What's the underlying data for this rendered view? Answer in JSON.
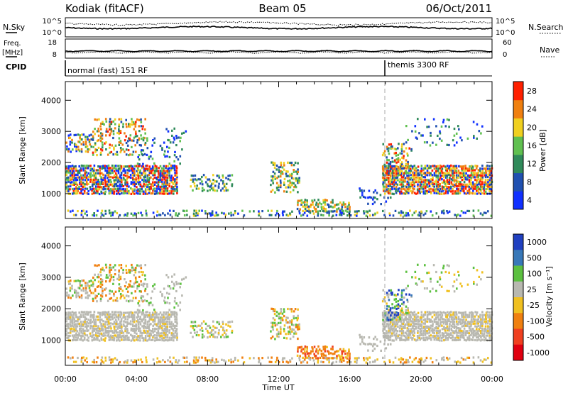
{
  "header": {
    "station": "Kodiak (fitACF)",
    "beam": "Beam 05",
    "date": "06/Oct/2011"
  },
  "top_panels": {
    "nsky_label": "N.Sky",
    "nsearch_label": "N.Search",
    "nsky_ticks": [
      "10^5",
      "10^0"
    ],
    "nsearch_ticks": [
      "10^5",
      "10^0"
    ],
    "freq_label_1": "Freq.",
    "freq_label_2": "[MHz]",
    "freq_ticks": [
      "18",
      "8"
    ],
    "nave_label": "Nave",
    "nave_ticks": [
      "60",
      "0"
    ],
    "cpid_label": "CPID",
    "cpid_segments": [
      {
        "label": "normal (fast) 151 RF",
        "start_hour": 0
      },
      {
        "label": "themis 3300 RF",
        "start_hour": 18
      }
    ]
  },
  "chart_data": [
    {
      "type": "heatmap",
      "name": "power",
      "xlabel": "Time UT",
      "ylabel": "Slant Range [km]",
      "xlim": [
        0,
        24
      ],
      "ylim": [
        200,
        4600
      ],
      "x_ticks": [
        "00:00",
        "04:00",
        "08:00",
        "12:00",
        "16:00",
        "20:00",
        "00:00"
      ],
      "y_ticks": [
        1000,
        2000,
        3000,
        4000
      ],
      "colorbar_label": "Power [dB]",
      "colorbar_ticks": [
        4,
        8,
        12,
        16,
        20,
        24,
        28
      ],
      "colors": [
        "#1030ff",
        "#2050b0",
        "#308a5a",
        "#60c050",
        "#f0d020",
        "#f08010",
        "#ff2000"
      ],
      "dashed_marker_hour": 18
    },
    {
      "type": "heatmap",
      "name": "velocity",
      "xlabel": "Time UT",
      "ylabel": "Slant Range [km]",
      "xlim": [
        0,
        24
      ],
      "ylim": [
        200,
        4600
      ],
      "x_ticks": [
        "00:00",
        "04:00",
        "08:00",
        "12:00",
        "16:00",
        "20:00",
        "00:00"
      ],
      "y_ticks": [
        1000,
        2000,
        3000,
        4000
      ],
      "colorbar_label": "Velocity [m s⁻¹]",
      "colorbar_ticks": [
        "1000",
        "500",
        "100",
        "25",
        "-25",
        "-100",
        "-500",
        "-1000"
      ],
      "colors": [
        "#2040c0",
        "#3878b8",
        "#5cc040",
        "#b8b8b0",
        "#f0c020",
        "#f08010",
        "#f04020",
        "#e00010"
      ],
      "dashed_marker_hour": 18
    }
  ]
}
